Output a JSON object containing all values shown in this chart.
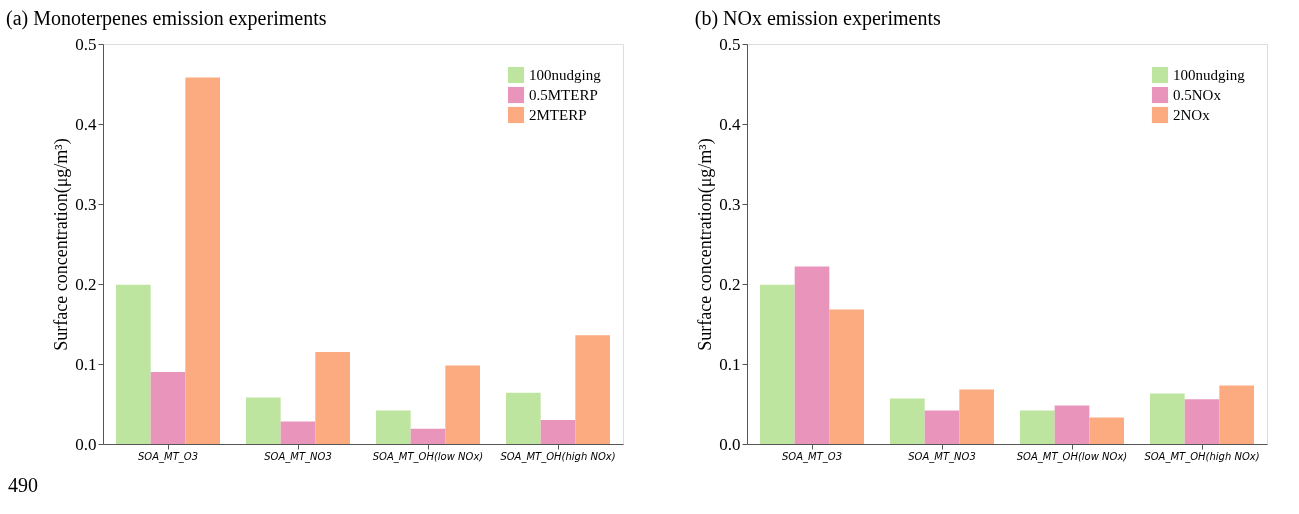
{
  "chart_data": [
    {
      "type": "bar",
      "title": "(a) Monoterpenes emission experiments",
      "ylabel": "Surface concentration(μg/m³)",
      "categories": [
        "SOA_MT_O3",
        "SOA_MT_NO3",
        "SOA_MT_OH(low NOx)",
        "SOA_MT_OH(high NOx)"
      ],
      "series": [
        {
          "name": "100nudging",
          "color": "#bde5a0",
          "values": [
            0.199,
            0.058,
            0.042,
            0.064
          ]
        },
        {
          "name": "0.5MTERP",
          "color": "#e994bb",
          "values": [
            0.09,
            0.028,
            0.019,
            0.03
          ]
        },
        {
          "name": "2MTERP",
          "color": "#fcaa7f",
          "values": [
            0.458,
            0.115,
            0.098,
            0.136
          ]
        }
      ],
      "ylim": [
        0,
        0.5
      ],
      "yticks": [
        {
          "value": 0,
          "label": "0.0"
        },
        0.1,
        0.2,
        0.3,
        0.4,
        0.5
      ],
      "grid": false,
      "legend": "top right",
      "annotations": [
        "490"
      ]
    },
    {
      "type": "bar",
      "title": "(b) NOx emission experiments",
      "ylabel": "Surface concentration(μg/m³)",
      "categories": [
        "SOA_MT_O3",
        "SOA_MT_NO3",
        "SOA_MT_OH(low NOx)",
        "SOA_MT_OH(high NOx)"
      ],
      "series": [
        {
          "name": "100nudging",
          "color": "#bde5a0",
          "values": [
            0.199,
            0.057,
            0.042,
            0.063
          ]
        },
        {
          "name": "0.5NOx",
          "color": "#e994bb",
          "values": [
            0.222,
            0.042,
            0.048,
            0.056
          ]
        },
        {
          "name": "2NOx",
          "color": "#fcaa7f",
          "values": [
            0.168,
            0.068,
            0.033,
            0.073
          ]
        }
      ],
      "ylim": [
        0,
        0.5
      ],
      "yticks": [
        {
          "value": 0,
          "label": "0.0"
        },
        0.1,
        0.2,
        0.3,
        0.4,
        0.5
      ],
      "grid": false,
      "legend": "top right"
    }
  ]
}
